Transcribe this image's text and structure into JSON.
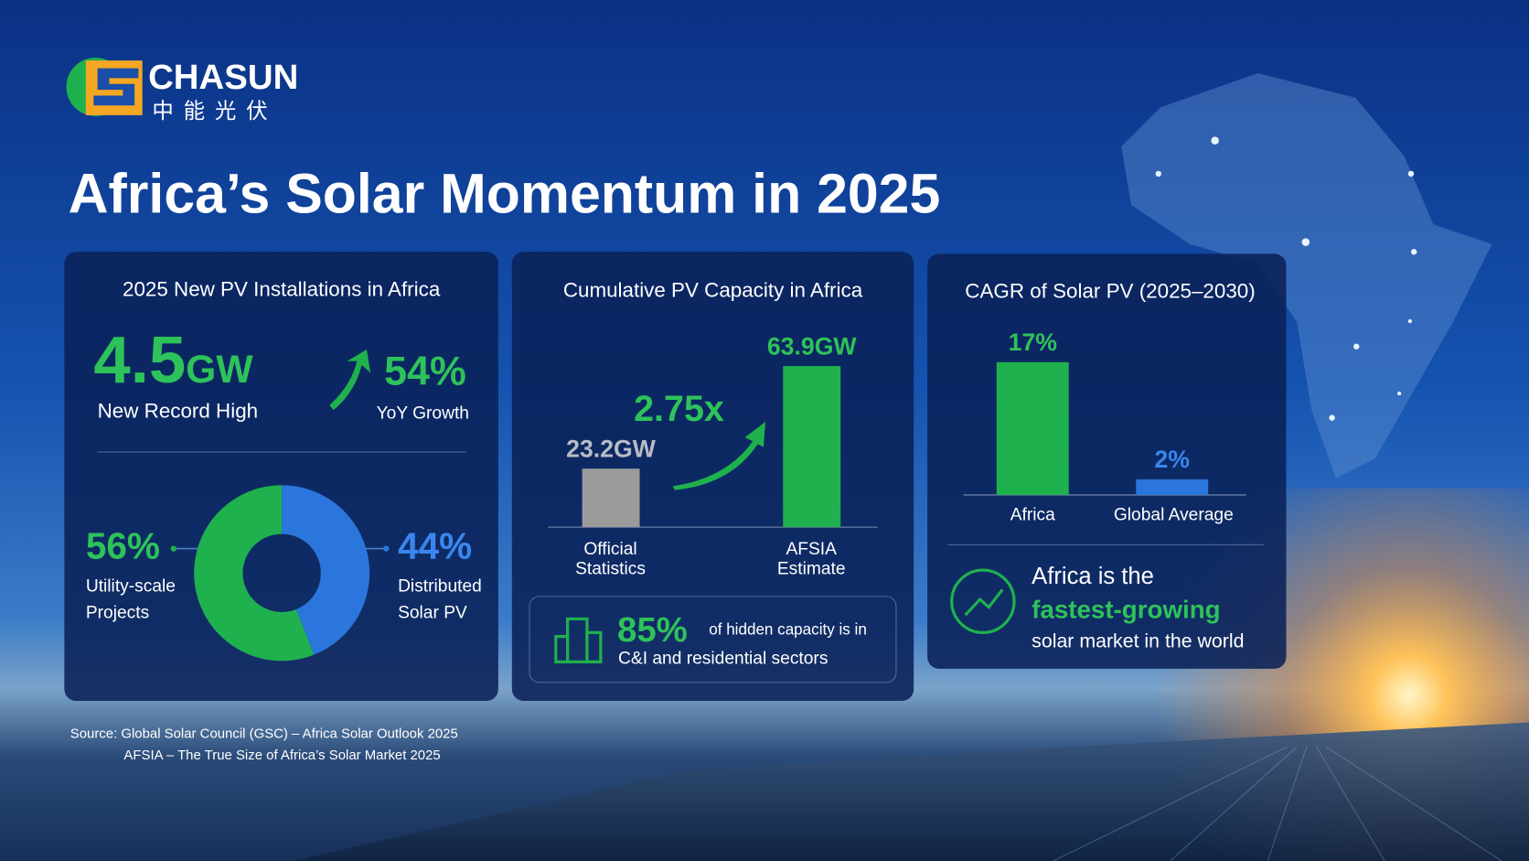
{
  "logo": {
    "name": "CHASUN",
    "subtitle": "中 能 光 伏"
  },
  "title": "Africa’s Solar Momentum in 2025",
  "chart_data": [
    {
      "type": "pie",
      "title": "2025 New PV Installations in Africa",
      "headline": {
        "value": "4.5",
        "unit": "GW",
        "caption": "New Record High"
      },
      "growth": {
        "value": "54%",
        "caption": "YoY Growth"
      },
      "categories": [
        "Utility-scale Projects",
        "Distributed Solar PV"
      ],
      "values": [
        56,
        44
      ],
      "value_labels": [
        "56%",
        "44%"
      ],
      "colors": [
        "#1fb14e",
        "#2b76dc"
      ]
    },
    {
      "type": "bar",
      "title": "Cumulative PV Capacity in Africa",
      "categories": [
        "Official Statistics",
        "AFSIA Estimate"
      ],
      "values": [
        23.2,
        63.9
      ],
      "value_labels": [
        "23.2GW",
        "63.9GW"
      ],
      "colors": [
        "#9b9b9b",
        "#1fb14e"
      ],
      "label_colors": [
        "#b8bcc4",
        "#2ec25a"
      ],
      "annotation": "2.75x",
      "callout": {
        "value": "85%",
        "line1": "of hidden capacity is in",
        "line2": "C&I and residential sectors"
      }
    },
    {
      "type": "bar",
      "title": "CAGR of Solar PV (2025–2030)",
      "categories": [
        "Africa",
        "Global Average"
      ],
      "values": [
        17,
        2
      ],
      "value_labels": [
        "17%",
        "2%"
      ],
      "colors": [
        "#1fb14e",
        "#2b76dc"
      ],
      "label_colors": [
        "#2ec25a",
        "#3a86ee"
      ],
      "callout": {
        "line1": "Africa is the",
        "line2": "fastest-growing",
        "line3": "solar market in the world"
      }
    }
  ],
  "sources": [
    "Source: Global Solar Council (GSC) – Africa Solar Outlook 2025",
    "AFSIA – The True Size of Africa’s Solar Market 2025"
  ]
}
